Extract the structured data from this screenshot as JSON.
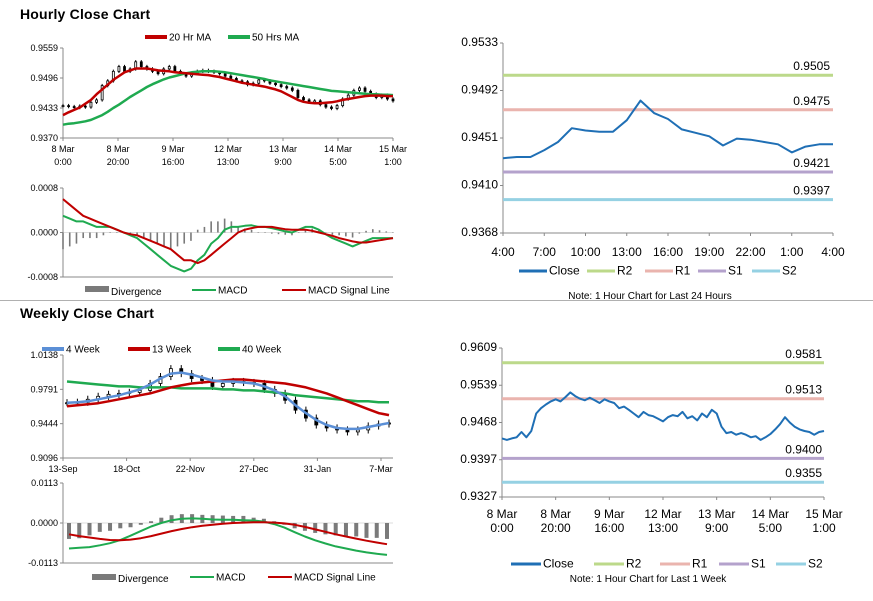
{
  "sections": {
    "hourly_title": "Hourly Close Chart",
    "weekly_title": "Weekly Close Chart"
  },
  "colors": {
    "candle": "#000000",
    "ma_red": "#c00000",
    "ma_green": "#1faa50",
    "ma_blue": "#5b8fd6",
    "hist": "#7a7a7a",
    "close": "#1f6fb5",
    "r2": "#bcd98a",
    "r1": "#eab4ae",
    "s1": "#b4a2cc",
    "s2": "#95d1e3"
  },
  "chart_data": [
    {
      "id": "hourly-price",
      "type": "line",
      "legend": [
        "20 Hr MA",
        "50 Hrs MA"
      ],
      "x_ticks": [
        "8 Mar|0:00",
        "8 Mar|20:00",
        "9 Mar|16:00",
        "12 Mar|13:00",
        "13 Mar|9:00",
        "14 Mar|5:00",
        "15 Mar|1:00"
      ],
      "y_ticks": [
        "0.9559",
        "0.9496",
        "0.9433",
        "0.9370"
      ],
      "ylim": [
        0.937,
        0.9559
      ],
      "close": [
        0.9438,
        0.9436,
        0.9434,
        0.9437,
        0.9435,
        0.9445,
        0.945,
        0.948,
        0.949,
        0.951,
        0.952,
        0.951,
        0.9515,
        0.953,
        0.952,
        0.9515,
        0.951,
        0.9505,
        0.9515,
        0.952,
        0.951,
        0.9505,
        0.95,
        0.9505,
        0.951,
        0.9512,
        0.951,
        0.9508,
        0.9505,
        0.95,
        0.9495,
        0.949,
        0.9488,
        0.9482,
        0.9485,
        0.9492,
        0.949,
        0.9485,
        0.9482,
        0.9478,
        0.9475,
        0.947,
        0.9455,
        0.945,
        0.9445,
        0.9448,
        0.944,
        0.9435,
        0.9432,
        0.9438,
        0.9452,
        0.946,
        0.947,
        0.9475,
        0.9468,
        0.9462,
        0.9455,
        0.946,
        0.9452,
        0.9448
      ],
      "ma20": [
        0.9418,
        0.9424,
        0.9429,
        0.9434,
        0.9442,
        0.945,
        0.9462,
        0.9472,
        0.9482,
        0.9492,
        0.95,
        0.9508,
        0.9512,
        0.9516,
        0.9516,
        0.9516,
        0.9514,
        0.9512,
        0.9511,
        0.951,
        0.9508,
        0.9507,
        0.9506,
        0.9505,
        0.9504,
        0.9503,
        0.9502,
        0.95,
        0.9498,
        0.9495,
        0.9492,
        0.9489,
        0.9486,
        0.9484,
        0.9482,
        0.948,
        0.9478,
        0.9475,
        0.9472,
        0.9468,
        0.9462,
        0.9456,
        0.945,
        0.9446,
        0.9444,
        0.9443,
        0.9443,
        0.9444,
        0.9445,
        0.9447,
        0.945,
        0.9452,
        0.9454,
        0.9456,
        0.9458,
        0.9459,
        0.9459,
        0.9459,
        0.9458,
        0.9458
      ],
      "ma50": [
        0.9398,
        0.94,
        0.9401,
        0.9403,
        0.9405,
        0.9408,
        0.9413,
        0.9418,
        0.9425,
        0.9433,
        0.944,
        0.9448,
        0.9456,
        0.9463,
        0.947,
        0.9477,
        0.9483,
        0.9488,
        0.9493,
        0.9497,
        0.95,
        0.9503,
        0.9506,
        0.9508,
        0.9509,
        0.951,
        0.951,
        0.951,
        0.9509,
        0.9508,
        0.9506,
        0.9504,
        0.9502,
        0.95,
        0.9498,
        0.9496,
        0.9494,
        0.9491,
        0.9489,
        0.9487,
        0.9485,
        0.9483,
        0.9481,
        0.9479,
        0.9477,
        0.9475,
        0.9473,
        0.9471,
        0.9469,
        0.9468,
        0.9467,
        0.9466,
        0.9465,
        0.9464,
        0.9463,
        0.9462,
        0.9462,
        0.9461,
        0.9461,
        0.946
      ]
    },
    {
      "id": "hourly-macd",
      "type": "line",
      "legend": [
        "Divergence",
        "MACD",
        "MACD Signal Line"
      ],
      "y_ticks": [
        "0.0008",
        "0.0000",
        "-0.0008"
      ],
      "ylim": [
        -0.0008,
        0.0008
      ],
      "macd": [
        0.0003,
        0.00025,
        0.0002,
        0.0002,
        0.00015,
        0.0001,
        0.0001,
        0.0001,
        5e-05,
        0.0,
        -5e-05,
        -0.0001,
        -0.0002,
        -0.0003,
        -0.0004,
        -0.0005,
        -0.0006,
        -0.00065,
        -0.0007,
        -0.00065,
        -0.0005,
        -0.0004,
        -0.0002,
        -0.0001,
        5e-05,
        0.0001,
        0.0001,
        0.00012,
        0.00013,
        0.0001,
        0.0001,
        8e-05,
        5e-05,
        2e-05,
        0.0,
        5e-05,
        0.0001,
        0.0001,
        5e-05,
        -3e-05,
        -0.0001,
        -0.00015,
        -0.0002,
        -0.00025,
        -0.0002,
        -0.00015,
        -0.0001,
        -0.0001,
        -0.0001,
        -0.0001
      ],
      "signal": [
        0.0006,
        0.0005,
        0.0004,
        0.0003,
        0.00025,
        0.0002,
        0.00015,
        0.0001,
        5e-05,
        0.0,
        -3e-05,
        -5e-05,
        -0.0001,
        -0.00015,
        -0.0002,
        -0.00025,
        -0.0003,
        -0.0004,
        -0.0005,
        -0.0005,
        -0.00055,
        -0.0005,
        -0.0004,
        -0.0003,
        -0.0002,
        -0.0001,
        0.0,
        5e-05,
        8e-05,
        0.0001,
        0.0001,
        0.0001,
        8e-05,
        6e-05,
        5e-05,
        5e-05,
        5e-05,
        3e-05,
        0.0,
        -3e-05,
        -6e-05,
        -0.0001,
        -0.00013,
        -0.00016,
        -0.00018,
        -0.00018,
        -0.00016,
        -0.00014,
        -0.00012,
        -0.0001
      ],
      "divergence": [
        -0.0003,
        -0.00025,
        -0.0002,
        -0.0001,
        -0.0001,
        -0.0001,
        -5e-05,
        0.0,
        0.0,
        0.0,
        -2e-05,
        -5e-05,
        -0.0001,
        -0.00015,
        -0.0002,
        -0.00025,
        -0.0003,
        -0.00025,
        -0.0002,
        -0.00015,
        5e-05,
        0.0001,
        0.0002,
        0.0002,
        0.00025,
        0.0002,
        0.0001,
        7e-05,
        5e-05,
        0.0,
        0.0,
        -2e-05,
        -3e-05,
        -4e-05,
        -5e-05,
        0.0,
        5e-05,
        7e-05,
        5e-05,
        0.0,
        -4e-05,
        -5e-05,
        -7e-05,
        -9e-05,
        -2e-05,
        3e-05,
        6e-05,
        4e-05,
        2e-05,
        0.0
      ]
    },
    {
      "id": "hourly-close",
      "type": "line",
      "legend": [
        "Close",
        "R2",
        "R1",
        "S1",
        "S2"
      ],
      "x_ticks": [
        "4:00",
        "7:00",
        "10:00",
        "13:00",
        "16:00",
        "19:00",
        "22:00",
        "1:00",
        "4:00"
      ],
      "y_ticks": [
        "0.9533",
        "0.9492",
        "0.9451",
        "0.9410",
        "0.9368"
      ],
      "ylim": [
        0.9368,
        0.9533
      ],
      "close": [
        0.9433,
        0.9434,
        0.9434,
        0.944,
        0.9447,
        0.9459,
        0.9457,
        0.9456,
        0.9456,
        0.9466,
        0.9483,
        0.9472,
        0.9467,
        0.9458,
        0.9455,
        0.9452,
        0.9444,
        0.945,
        0.9449,
        0.9447,
        0.9445,
        0.9438,
        0.9443,
        0.9445,
        0.9445
      ],
      "levels": [
        {
          "name": "R2",
          "value": 0.9505,
          "label": "0.9505"
        },
        {
          "name": "R1",
          "value": 0.9475,
          "label": "0.9475"
        },
        {
          "name": "S1",
          "value": 0.9421,
          "label": "0.9421"
        },
        {
          "name": "S2",
          "value": 0.9397,
          "label": "0.9397"
        }
      ],
      "note": "Note: 1 Hour Chart for Last 24 Hours"
    },
    {
      "id": "weekly-price",
      "type": "line",
      "legend": [
        "4 Week",
        "13 Week",
        "40 Week"
      ],
      "x_ticks": [
        "13-Sep",
        "18-Oct",
        "22-Nov",
        "27-Dec",
        "31-Jan",
        "7-Mar"
      ],
      "y_ticks": [
        "1.0138",
        "0.9791",
        "0.9444",
        "0.9096"
      ],
      "ylim": [
        0.9096,
        1.0138
      ],
      "close": [
        0.9655,
        0.966,
        0.969,
        0.972,
        0.974,
        0.975,
        0.976,
        0.978,
        0.985,
        0.992,
        1.0,
        0.995,
        0.99,
        0.988,
        0.982,
        0.985,
        0.987,
        0.986,
        0.985,
        0.979,
        0.975,
        0.968,
        0.958,
        0.95,
        0.943,
        0.94,
        0.938,
        0.936,
        0.938,
        0.942,
        0.944,
        0.945
      ],
      "ma4": [
        0.9655,
        0.966,
        0.967,
        0.969,
        0.971,
        0.973,
        0.976,
        0.979,
        0.984,
        0.99,
        0.995,
        0.996,
        0.994,
        0.991,
        0.988,
        0.987,
        0.987,
        0.986,
        0.985,
        0.982,
        0.978,
        0.972,
        0.963,
        0.955,
        0.948,
        0.943,
        0.94,
        0.939,
        0.939,
        0.941,
        0.943,
        0.945
      ],
      "ma13": [
        0.962,
        0.963,
        0.964,
        0.965,
        0.967,
        0.969,
        0.971,
        0.973,
        0.975,
        0.978,
        0.981,
        0.983,
        0.985,
        0.986,
        0.987,
        0.988,
        0.989,
        0.989,
        0.988,
        0.987,
        0.986,
        0.985,
        0.983,
        0.981,
        0.978,
        0.975,
        0.971,
        0.967,
        0.963,
        0.959,
        0.955,
        0.953
      ],
      "ma40": [
        0.987,
        0.986,
        0.985,
        0.984,
        0.983,
        0.982,
        0.982,
        0.981,
        0.981,
        0.981,
        0.981,
        0.98,
        0.98,
        0.98,
        0.98,
        0.979,
        0.979,
        0.978,
        0.978,
        0.977,
        0.976,
        0.975,
        0.973,
        0.972,
        0.971,
        0.97,
        0.969,
        0.968,
        0.967,
        0.967,
        0.966,
        0.966
      ]
    },
    {
      "id": "weekly-macd",
      "type": "line",
      "legend": [
        "Divergence",
        "MACD",
        "MACD Signal Line"
      ],
      "y_ticks": [
        "0.0113",
        "0.0000",
        "-0.0113"
      ],
      "ylim": [
        -0.0113,
        0.0113
      ],
      "macd": [
        -0.0072,
        -0.007,
        -0.0068,
        -0.0063,
        -0.0057,
        -0.0048,
        -0.0036,
        -0.0023,
        -0.001,
        0.0,
        0.0008,
        0.0012,
        0.0013,
        0.0012,
        0.001,
        0.0009,
        0.0009,
        0.0008,
        0.0007,
        0.0004,
        -0.0003,
        -0.0013,
        -0.0026,
        -0.0038,
        -0.0049,
        -0.0058,
        -0.0066,
        -0.0072,
        -0.0078,
        -0.0083,
        -0.0087,
        -0.009
      ],
      "signal": [
        -0.0032,
        -0.0037,
        -0.0041,
        -0.0045,
        -0.0048,
        -0.0049,
        -0.0047,
        -0.0043,
        -0.0037,
        -0.003,
        -0.0023,
        -0.0017,
        -0.0012,
        -0.0008,
        -0.0005,
        -0.0002,
        0.0,
        0.0001,
        0.0002,
        0.0002,
        0.0001,
        -0.0001,
        -0.0005,
        -0.0011,
        -0.0018,
        -0.0025,
        -0.0032,
        -0.0038,
        -0.0044,
        -0.005,
        -0.0055,
        -0.006
      ],
      "divergence": [
        -0.0045,
        -0.0043,
        -0.0035,
        -0.0025,
        -0.0022,
        -0.0015,
        -0.0012,
        -0.0005,
        0.0005,
        0.0015,
        0.0022,
        0.0025,
        0.0025,
        0.0023,
        0.0022,
        0.0021,
        0.002,
        0.002,
        0.0015,
        0.0012,
        0.0005,
        -0.0005,
        -0.0015,
        -0.0022,
        -0.0028,
        -0.0032,
        -0.0035,
        -0.0038,
        -0.0038,
        -0.0042,
        -0.0042,
        -0.0045
      ]
    },
    {
      "id": "weekly-close",
      "type": "line",
      "legend": [
        "Close",
        "R2",
        "R1",
        "S1",
        "S2"
      ],
      "x_ticks": [
        "8 Mar|0:00",
        "8 Mar|20:00",
        "9 Mar|16:00",
        "12 Mar|13:00",
        "13 Mar|9:00",
        "14 Mar|5:00",
        "15 Mar|1:00"
      ],
      "y_ticks": [
        "0.9609",
        "0.9539",
        "0.9468",
        "0.9397",
        "0.9327"
      ],
      "ylim": [
        0.9327,
        0.9609
      ],
      "close": [
        0.9438,
        0.9435,
        0.9438,
        0.944,
        0.945,
        0.944,
        0.9452,
        0.9485,
        0.9495,
        0.9502,
        0.9508,
        0.9512,
        0.9508,
        0.9516,
        0.9525,
        0.9518,
        0.9513,
        0.951,
        0.9515,
        0.951,
        0.9505,
        0.9512,
        0.9508,
        0.9505,
        0.9495,
        0.9498,
        0.9492,
        0.9485,
        0.9478,
        0.9488,
        0.9482,
        0.948,
        0.9475,
        0.947,
        0.9478,
        0.9482,
        0.948,
        0.9488,
        0.9476,
        0.948,
        0.9472,
        0.9485,
        0.9478,
        0.9492,
        0.9485,
        0.946,
        0.9448,
        0.945,
        0.9445,
        0.9448,
        0.9445,
        0.944,
        0.9442,
        0.9435,
        0.944,
        0.9446,
        0.9455,
        0.9465,
        0.9478,
        0.9468,
        0.946,
        0.9455,
        0.9452,
        0.945,
        0.9445,
        0.945,
        0.9452
      ],
      "levels": [
        {
          "name": "R2",
          "value": 0.9581,
          "label": "0.9581"
        },
        {
          "name": "R1",
          "value": 0.9513,
          "label": "0.9513"
        },
        {
          "name": "S1",
          "value": 0.94,
          "label": "0.9400"
        },
        {
          "name": "S2",
          "value": 0.9355,
          "label": "0.9355"
        }
      ],
      "note": "Note: 1 Hour Chart for Last 1 Week"
    }
  ]
}
